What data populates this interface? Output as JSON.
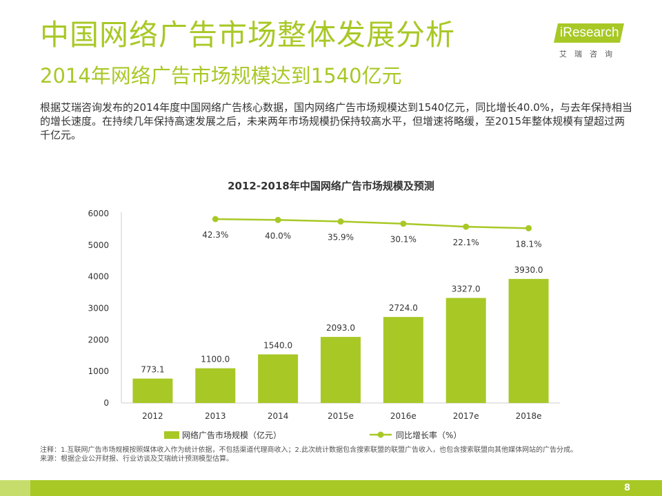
{
  "header": {
    "title": "中国网络广告市场整体发展分析",
    "subtitle": "2014年网络广告市场规模达到1540亿元"
  },
  "logo": {
    "word": "iResearch",
    "cn": "艾瑞咨询"
  },
  "intro": {
    "text": "根据艾瑞咨询发布的2014年度中国网络广告核心数据，国内网络广告市场规模达到1540亿元，同比增长40.0%，与去年保持相当的增长速度。在持续几年保持高速发展之后，未来两年市场规模扔保持较高水平，但增速将略缓，至2015年整体规模有望超过两千亿元。"
  },
  "chart_data": {
    "type": "bar",
    "title": "2012-2018年中国网络广告市场规模及预测",
    "categories": [
      "2012",
      "2013",
      "2014",
      "2015e",
      "2016e",
      "2017e",
      "2018e"
    ],
    "ylim": [
      0,
      6000
    ],
    "yticks": [
      "0",
      "1000",
      "2000",
      "3000",
      "4000",
      "5000",
      "6000"
    ],
    "series": [
      {
        "name": "网络广告市场规模（亿元）",
        "kind": "bar",
        "color": "#a8c826",
        "values": [
          773.1,
          1100.0,
          1540.0,
          2093.0,
          2724.0,
          3327.0,
          3930.0
        ],
        "labels": [
          "773.1",
          "1100.0",
          "1540.0",
          "2093.0",
          "2724.0",
          "3327.0",
          "3930.0"
        ]
      },
      {
        "name": "同比增长率（%）",
        "kind": "line",
        "color": "#a8c826",
        "x": [
          "2013",
          "2014",
          "2015e",
          "2016e",
          "2017e",
          "2018e"
        ],
        "values": [
          42.3,
          40.0,
          35.9,
          30.1,
          22.1,
          18.1
        ],
        "labels": [
          "42.3%",
          "40.0%",
          "35.9%",
          "30.1%",
          "22.1%",
          "18.1%"
        ]
      }
    ],
    "legend": "bottom",
    "grid": false
  },
  "notes": {
    "line1": "注释：1.互联网广告市场规模按照媒体收入作为统计依据，不包括渠道代理商收入；2.此次统计数据包含搜索联盟的联盟广告收入，也包含搜索联盟向其他媒体网站的广告分成。",
    "line2": "来源：根据企业公开财报、行业访谈及艾瑞统计预测模型估算。"
  },
  "footer": {
    "page": "8"
  }
}
